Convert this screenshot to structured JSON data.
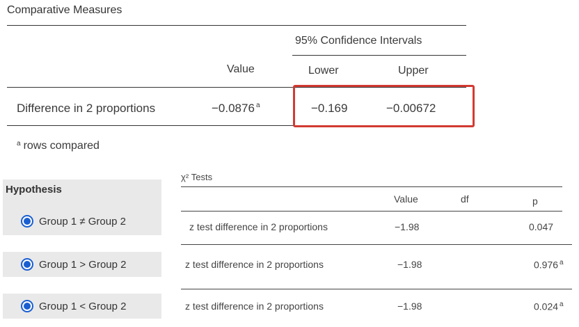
{
  "comparative": {
    "title": "Comparative Measures",
    "ci_header": "95% Confidence Intervals",
    "col_value": "Value",
    "col_lower": "Lower",
    "col_upper": "Upper",
    "row_label": "Difference in 2 proportions",
    "row_value": "−0.0876",
    "row_value_note": "a",
    "row_lower": "−0.169",
    "row_upper": "−0.00672",
    "footnote_mark": "a",
    "footnote_text": "rows compared"
  },
  "highlight_color": "#d23a32",
  "hypothesis": {
    "title": "Hypothesis",
    "options": [
      {
        "label": "Group 1 ≠ Group 2",
        "selected": true
      },
      {
        "label": "Group 1 > Group 2",
        "selected": true
      },
      {
        "label": "Group 1 < Group 2",
        "selected": true
      }
    ]
  },
  "chi_tests": {
    "title": "χ² Tests",
    "col_value": "Value",
    "col_df": "df",
    "col_p": "p",
    "rows": [
      {
        "label": "z test difference in 2 proportions",
        "value": "−1.98",
        "df": "",
        "p": "0.047",
        "p_note": ""
      },
      {
        "label": "z test difference in 2 proportions",
        "value": "−1.98",
        "df": "",
        "p": "0.976",
        "p_note": "a"
      },
      {
        "label": "z test difference in 2 proportions",
        "value": "−1.98",
        "df": "",
        "p": "0.024",
        "p_note": "a"
      }
    ]
  },
  "radio_color": "#1a5fd1"
}
